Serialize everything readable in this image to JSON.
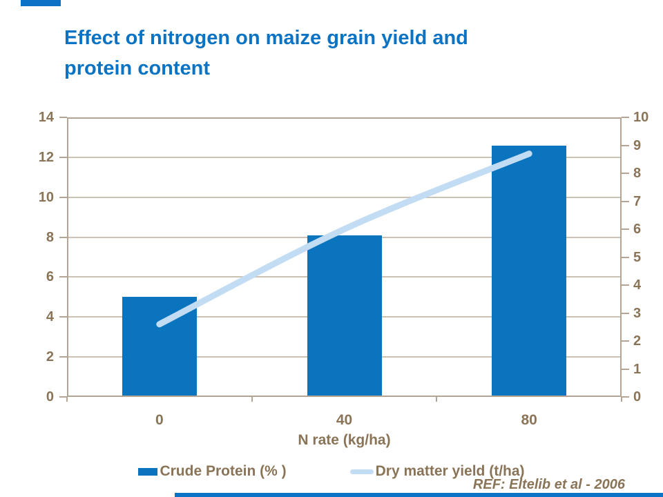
{
  "slide": {
    "title_line1": "Effect of nitrogen on maize grain yield and",
    "title_line2": "protein content",
    "ref_text": "REF:  Eltelib et al - 2006"
  },
  "colors": {
    "title_blue": "#0B73C4",
    "bar_blue": "#0A74BE",
    "line_light_blue": "#C2DCF3",
    "text_brown": "#8A7458",
    "axis_line": "#B3A493",
    "grid_line": "#CCC2B4",
    "decoration_blue": "#0B73C4"
  },
  "chart_data": {
    "type": "combo-bar-line",
    "categories": [
      "0",
      "40",
      "80"
    ],
    "series": [
      {
        "name": "Crude Protein (% )",
        "type": "bar",
        "axis": "left",
        "values": [
          5.0,
          8.1,
          12.6
        ]
      },
      {
        "name": "Dry matter yield (t/ha)",
        "type": "line",
        "axis": "right",
        "values": [
          2.6,
          6.0,
          8.7
        ]
      }
    ],
    "title": "Effect of nitrogen on maize grain yield and protein content",
    "xlabel": "N rate (kg/ha)",
    "ylabel": "",
    "left_axis": {
      "min": 0,
      "max": 14,
      "ticks": [
        0,
        2,
        4,
        6,
        8,
        10,
        12,
        14
      ]
    },
    "right_axis": {
      "min": 0,
      "max": 10,
      "ticks": [
        0,
        1,
        2,
        3,
        4,
        5,
        6,
        7,
        8,
        9,
        10
      ]
    },
    "grid": true,
    "legend_position": "bottom"
  }
}
